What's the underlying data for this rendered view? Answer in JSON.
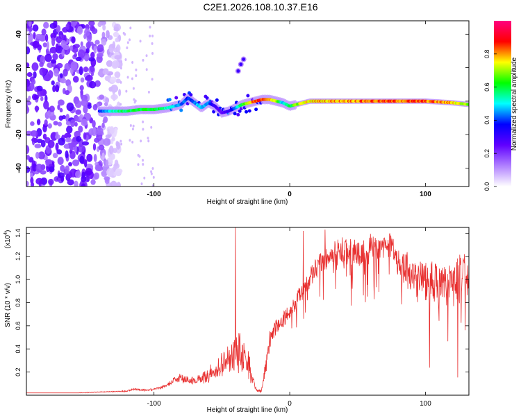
{
  "title": "C2E1.2026.108.10.37.E16",
  "chart_data": [
    {
      "type": "heatmap",
      "xlabel": "Height of straight line (km)",
      "ylabel": "Frequency (Hz)",
      "xlim": [
        -194,
        132
      ],
      "ylim": [
        -51,
        48
      ],
      "xticks": [
        -100,
        0,
        100
      ],
      "yticks": [
        -40,
        -20,
        0,
        20,
        40
      ],
      "colorbar": {
        "label": "Normalized spectral amplitude",
        "range": [
          0,
          1
        ],
        "ticks": [
          "0.0",
          "0.2",
          "0.4",
          "0.6",
          "0.8"
        ],
        "tick_values": [
          0,
          0.2,
          0.4,
          0.6,
          0.8
        ],
        "colors": [
          "#ffffff",
          "#b080ff",
          "#6000ff",
          "#0000ff",
          "#00ffff",
          "#00ff00",
          "#ffff00",
          "#ff0000",
          "#ff0080"
        ]
      },
      "ridge": {
        "x": [
          -140,
          -130,
          -120,
          -110,
          -100,
          -90,
          -80,
          -75,
          -70,
          -65,
          -60,
          -55,
          -50,
          -45,
          -40,
          -35,
          -30,
          -25,
          -20,
          -15,
          -10,
          -5,
          0,
          5,
          10,
          15,
          20,
          40,
          60,
          80,
          100,
          120,
          132
        ],
        "y": [
          -6,
          -6,
          -6,
          -5,
          -5,
          -4,
          -2,
          2,
          -1,
          -4,
          -1,
          -3,
          -7,
          -6,
          -4,
          -2,
          -1,
          0,
          1,
          1,
          0,
          -1,
          -3,
          -2,
          -1,
          0,
          0,
          0,
          0,
          0,
          0,
          -1,
          -2
        ],
        "amplitude": [
          0.4,
          0.55,
          0.6,
          0.6,
          0.62,
          0.55,
          0.45,
          0.4,
          0.45,
          0.5,
          0.45,
          0.3,
          0.25,
          0.3,
          0.45,
          0.6,
          0.75,
          0.85,
          0.9,
          0.85,
          0.7,
          0.5,
          0.6,
          0.7,
          0.75,
          0.78,
          0.8,
          0.82,
          0.85,
          0.85,
          0.85,
          0.8,
          0.7
        ]
      },
      "secondary_feature": {
        "x": [
          -38,
          -36,
          -34
        ],
        "y": [
          18,
          22,
          25
        ]
      },
      "noise_region_x": [
        -194,
        -125
      ]
    },
    {
      "type": "line",
      "xlabel": "Height of straight line (km)",
      "ylabel": "SNR (10 * v/v)",
      "yscale_label": "(x10",
      "yscale_exponent": "4",
      "xlim": [
        -194,
        132
      ],
      "ylim": [
        0,
        1.45
      ],
      "xticks": [
        -100,
        0,
        100
      ],
      "yticks": [
        0.2,
        0.4,
        0.6,
        0.8,
        1.0,
        1.2,
        1.4
      ],
      "ytick_labels": [
        "0.2",
        "0.4",
        "0.6",
        "0.8",
        "1.0",
        "1.2",
        "1.4"
      ],
      "series": [
        {
          "name": "SNR",
          "color": "#e83030",
          "x": [
            -194,
            -160,
            -140,
            -120,
            -115,
            -105,
            -100,
            -90,
            -85,
            -80,
            -75,
            -70,
            -65,
            -60,
            -55,
            -50,
            -45,
            -40,
            -35,
            -30,
            -27,
            -24,
            -21,
            -18,
            -15,
            -10,
            -5,
            0,
            5,
            10,
            15,
            20,
            30,
            40,
            50,
            60,
            70,
            75,
            80,
            90,
            100,
            110,
            120,
            130,
            132
          ],
          "base": [
            0.02,
            0.02,
            0.03,
            0.04,
            0.06,
            0.05,
            0.06,
            0.1,
            0.16,
            0.2,
            0.16,
            0.15,
            0.2,
            0.23,
            0.28,
            0.35,
            0.45,
            0.52,
            0.5,
            0.35,
            0.15,
            0.05,
            0.05,
            0.28,
            0.55,
            0.65,
            0.72,
            0.78,
            0.88,
            1.0,
            1.1,
            1.2,
            1.3,
            1.35,
            1.36,
            1.37,
            1.38,
            1.38,
            1.25,
            1.2,
            1.15,
            1.15,
            1.15,
            1.2,
            1.2
          ],
          "spread": [
            0.01,
            0.01,
            0.01,
            0.02,
            0.03,
            0.03,
            0.04,
            0.06,
            0.1,
            0.18,
            0.15,
            0.1,
            0.18,
            0.22,
            0.3,
            0.35,
            0.45,
            0.6,
            0.55,
            0.4,
            0.12,
            0.05,
            0.05,
            0.25,
            0.3,
            0.25,
            0.25,
            0.25,
            0.25,
            0.35,
            0.35,
            0.35,
            0.35,
            0.4,
            0.45,
            0.45,
            0.4,
            0.35,
            0.45,
            0.65,
            0.7,
            0.75,
            0.75,
            0.7,
            0.7
          ],
          "peaks": [
            {
              "x": -40,
              "y": 1.45
            },
            {
              "x": 10,
              "y": 1.42
            },
            {
              "x": 26,
              "y": 1.43
            }
          ]
        }
      ]
    }
  ]
}
